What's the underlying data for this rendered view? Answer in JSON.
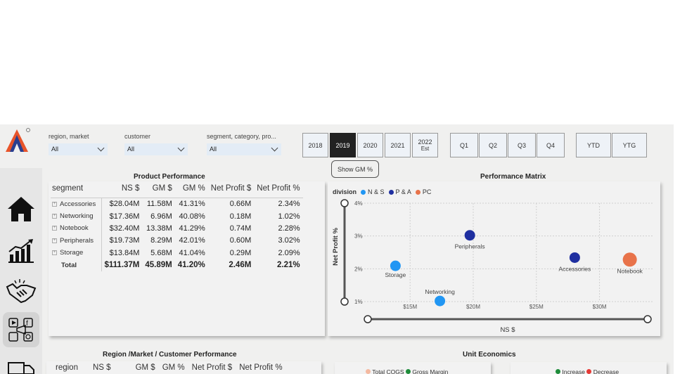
{
  "filters": {
    "region_market": {
      "title": "region, market",
      "value": "All"
    },
    "customer": {
      "title": "customer",
      "value": "All"
    },
    "segment": {
      "title": "segment, category, pro...",
      "value": "All"
    }
  },
  "years": [
    {
      "label": "2018",
      "sub": "",
      "selected": false
    },
    {
      "label": "2019",
      "sub": "",
      "selected": true
    },
    {
      "label": "2020",
      "sub": "",
      "selected": false
    },
    {
      "label": "2021",
      "sub": "",
      "selected": false
    },
    {
      "label": "2022",
      "sub": "Est",
      "selected": false
    }
  ],
  "quarters": [
    "Q1",
    "Q2",
    "Q3",
    "Q4"
  ],
  "periods": [
    "YTD",
    "YTG"
  ],
  "show_gm_label": "Show GM %",
  "product_performance": {
    "title": "Product  Performance",
    "columns": [
      "segment",
      "NS $",
      "GM $",
      "GM %",
      "Net Profit $",
      "Net Profit %"
    ],
    "rows": [
      [
        "Accessories",
        "$28.04M",
        "11.58M",
        "41.31%",
        "0.66M",
        "2.34%"
      ],
      [
        "Networking",
        "$17.36M",
        "6.96M",
        "40.08%",
        "0.18M",
        "1.02%"
      ],
      [
        "Notebook",
        "$32.40M",
        "13.38M",
        "41.29%",
        "0.74M",
        "2.28%"
      ],
      [
        "Peripherals",
        "$19.73M",
        "8.29M",
        "42.01%",
        "0.60M",
        "3.02%"
      ],
      [
        "Storage",
        "$13.84M",
        "5.68M",
        "41.04%",
        "0.29M",
        "2.09%"
      ]
    ],
    "total": [
      "Total",
      "$111.37M",
      "45.89M",
      "41.20%",
      "2.46M",
      "2.21%"
    ]
  },
  "performance_matrix": {
    "title": "Performance Matrix",
    "legend_title": "division",
    "legend": [
      {
        "name": "N & S",
        "color": "#2196f3"
      },
      {
        "name": "P & A",
        "color": "#1f2fa0"
      },
      {
        "name": "PC",
        "color": "#e8734a"
      }
    ],
    "ylabel": "Net Profit %",
    "xlabel": "NS $",
    "yticks": [
      "4%",
      "3%",
      "2%",
      "1%"
    ],
    "xticks": [
      "$15M",
      "$20M",
      "$25M",
      "$30M"
    ]
  },
  "chart_data": {
    "type": "scatter",
    "title": "Performance Matrix",
    "xlabel": "NS $",
    "ylabel": "Net Profit %",
    "xlim": [
      10.7,
      34.2
    ],
    "ylim": [
      1.0,
      4.0
    ],
    "points": [
      {
        "label": "Storage",
        "x": 13.84,
        "y": 2.09,
        "series": "N & S",
        "color": "#2196f3"
      },
      {
        "label": "Networking",
        "x": 17.36,
        "y": 1.02,
        "series": "N & S",
        "color": "#2196f3"
      },
      {
        "label": "Peripherals",
        "x": 19.73,
        "y": 3.02,
        "series": "P & A",
        "color": "#1f2fa0"
      },
      {
        "label": "Accessories",
        "x": 28.04,
        "y": 2.34,
        "series": "P & A",
        "color": "#1f2fa0"
      },
      {
        "label": "Notebook",
        "x": 32.4,
        "y": 2.28,
        "series": "PC",
        "color": "#e8734a"
      }
    ]
  },
  "region_market": {
    "title": "Region /Market / Customer Performance",
    "columns": [
      "region",
      "NS $",
      "GM $",
      "GM %",
      "Net Profit $",
      "Net Profit %"
    ]
  },
  "unit_economics": {
    "title": "Unit Economics",
    "legend_a": [
      "Total COGS",
      "Gross Margin"
    ],
    "legend_b": [
      "Increase",
      "Decrease"
    ]
  }
}
